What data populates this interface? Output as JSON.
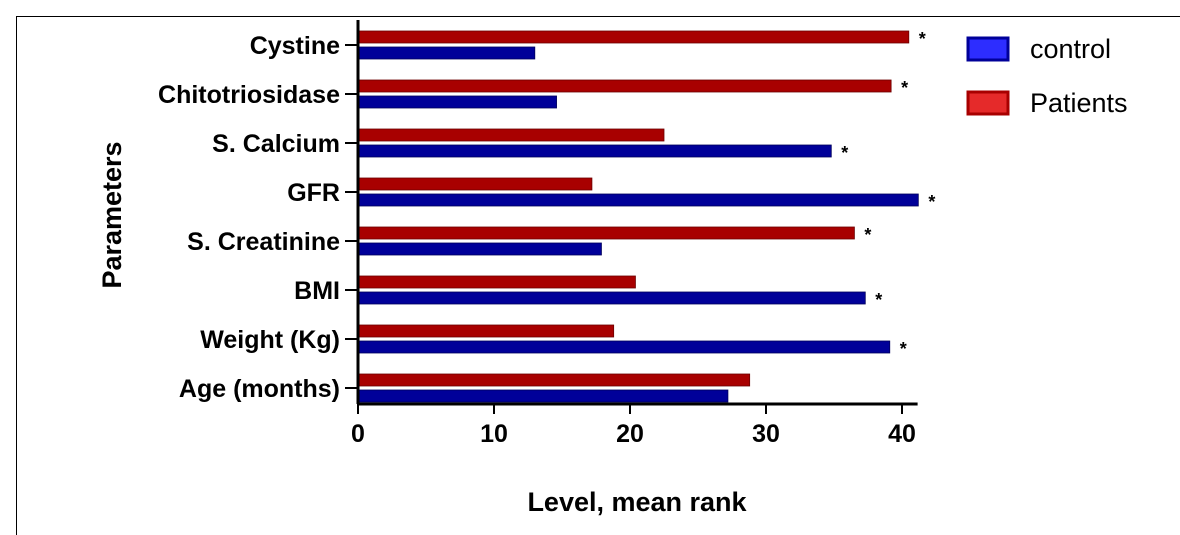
{
  "chart_data": {
    "type": "bar",
    "orientation": "horizontal",
    "xlabel": "Level, mean rank",
    "ylabel": "Parameters",
    "xlim": [
      0,
      41
    ],
    "xticks": [
      "0",
      "10",
      "20",
      "30",
      "40"
    ],
    "categories": [
      "Cystine",
      "Chitotriosidase",
      "S. Calcium",
      "GFR",
      "S. Creatinine",
      "BMI",
      "Weight (Kg)",
      "Age (months)"
    ],
    "series": [
      {
        "name": "Patients",
        "color": "#a80000",
        "values": [
          40.5,
          39.2,
          22.5,
          17.2,
          36.5,
          20.4,
          18.8,
          28.8
        ]
      },
      {
        "name": "control",
        "color": "#000099",
        "values": [
          13.0,
          14.6,
          34.8,
          41.2,
          17.9,
          37.3,
          39.1,
          27.2
        ]
      }
    ],
    "annotations": [
      "*",
      "*",
      "*",
      "*",
      "*",
      "*",
      "*",
      ""
    ],
    "legend": {
      "position": "top-right",
      "order": [
        "control",
        "Patients"
      ]
    },
    "grid": false
  }
}
